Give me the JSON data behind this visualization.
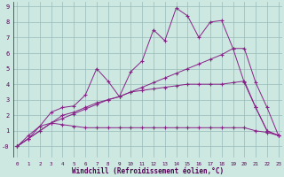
{
  "xlabel": "Windchill (Refroidissement éolien,°C)",
  "xlim": [
    -0.3,
    23.3
  ],
  "ylim": [
    -0.7,
    9.3
  ],
  "xticks": [
    0,
    1,
    2,
    3,
    4,
    5,
    6,
    7,
    8,
    9,
    10,
    11,
    12,
    13,
    14,
    15,
    16,
    17,
    18,
    19,
    20,
    21,
    22,
    23
  ],
  "yticks": [
    0,
    1,
    2,
    3,
    4,
    5,
    6,
    7,
    8,
    9
  ],
  "bg_color": "#cce8e0",
  "line_color": "#882288",
  "grid_color": "#99bbbb",
  "lines": [
    {
      "x": [
        0,
        1,
        2,
        3,
        4,
        5,
        6,
        7,
        8,
        9,
        10,
        11,
        12,
        13,
        14,
        15,
        16,
        17,
        18,
        19,
        20,
        21,
        22,
        23
      ],
      "y": [
        0.0,
        0.7,
        1.3,
        1.5,
        1.4,
        1.3,
        1.2,
        1.2,
        1.2,
        1.2,
        1.2,
        1.2,
        1.2,
        1.2,
        1.2,
        1.2,
        1.2,
        1.2,
        1.2,
        1.2,
        1.2,
        1.0,
        0.9,
        0.7
      ]
    },
    {
      "x": [
        0,
        1,
        2,
        3,
        4,
        5,
        6,
        7,
        8,
        9,
        10,
        11,
        12,
        13,
        14,
        15,
        16,
        17,
        18,
        19,
        20,
        21,
        22,
        23
      ],
      "y": [
        0.0,
        0.5,
        1.0,
        1.5,
        1.8,
        2.1,
        2.4,
        2.7,
        3.0,
        3.2,
        3.5,
        3.8,
        4.1,
        4.4,
        4.7,
        5.0,
        5.3,
        5.6,
        5.9,
        6.3,
        6.3,
        4.1,
        2.5,
        0.7
      ]
    },
    {
      "x": [
        0,
        1,
        2,
        3,
        4,
        5,
        6,
        7,
        8,
        9,
        10,
        11,
        12,
        13,
        14,
        15,
        16,
        17,
        18,
        19,
        20,
        21,
        22,
        23
      ],
      "y": [
        0.0,
        0.5,
        1.0,
        1.5,
        2.0,
        2.2,
        2.5,
        2.8,
        3.0,
        3.2,
        3.5,
        3.6,
        3.7,
        3.8,
        3.9,
        4.0,
        4.0,
        4.0,
        4.0,
        4.1,
        4.2,
        2.5,
        1.0,
        0.7
      ]
    },
    {
      "x": [
        0,
        1,
        2,
        3,
        4,
        5,
        6,
        7,
        8,
        9,
        10,
        11,
        12,
        13,
        14,
        15,
        16,
        17,
        18,
        19,
        20,
        21,
        22,
        23
      ],
      "y": [
        0.0,
        0.5,
        1.3,
        2.2,
        2.5,
        2.6,
        3.3,
        5.0,
        4.2,
        3.2,
        4.8,
        5.5,
        7.5,
        6.8,
        8.9,
        8.4,
        7.0,
        8.0,
        8.1,
        6.3,
        4.1,
        2.5,
        1.0,
        0.7
      ]
    }
  ]
}
